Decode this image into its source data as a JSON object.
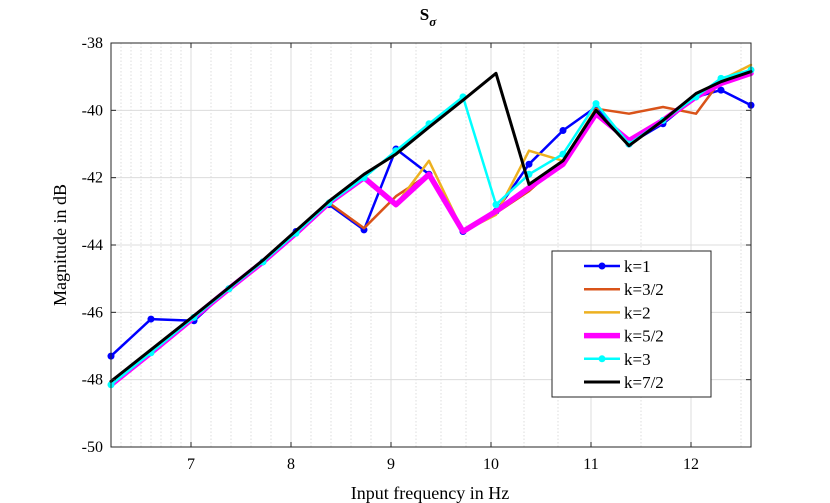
{
  "chart_data": {
    "type": "line",
    "title": "S",
    "title_subscript": "σ",
    "xlabel": "Input frequency in Hz",
    "ylabel": "Magnitude in dB",
    "xlim": [
      6.2,
      12.6
    ],
    "ylim": [
      -50,
      -38
    ],
    "xticks": [
      7,
      8,
      9,
      10,
      11,
      12
    ],
    "yticks": [
      -50,
      -48,
      -46,
      -44,
      -42,
      -40,
      -38
    ],
    "xtick_labels": [
      "7",
      "8",
      "9",
      "10",
      "11",
      "12"
    ],
    "ytick_labels": [
      "-50",
      "-48",
      "-46",
      "-44",
      "-42",
      "-40",
      "-38"
    ],
    "x_minor_ticks": [
      6.3,
      6.4,
      6.5,
      6.6,
      6.7,
      6.8,
      6.9,
      7.2,
      7.4,
      7.6,
      7.8,
      8.2,
      8.4,
      8.6,
      8.8,
      9.25,
      9.5,
      9.75,
      10.33,
      10.67,
      11.5,
      12.5
    ],
    "grid": true,
    "legend_position": "bottom-right",
    "series": [
      {
        "name": "k=1",
        "color": "#0000FF",
        "marker": true,
        "x": [
          6.2,
          6.6,
          7.03,
          7.38,
          7.72,
          8.05,
          8.38,
          8.73,
          9.05,
          9.38,
          9.72,
          10.05,
          10.38,
          10.72,
          11.05,
          11.38,
          11.72,
          12.05,
          12.3,
          12.6
        ],
        "y": [
          -47.3,
          -46.2,
          -46.25,
          -45.3,
          -44.5,
          -43.6,
          -42.8,
          -43.55,
          -41.15,
          -41.9,
          -43.6,
          -43.0,
          -41.6,
          -40.6,
          -39.9,
          -41.0,
          -40.4,
          -39.6,
          -39.4,
          -39.85
        ]
      },
      {
        "name": "k=3/2",
        "color": "#D95319",
        "marker": false,
        "x": [
          6.2,
          6.6,
          7.03,
          7.38,
          7.72,
          8.05,
          8.38,
          8.73,
          9.05,
          9.38,
          9.72,
          10.05,
          10.38,
          10.72,
          11.05,
          11.38,
          11.72,
          12.05,
          12.3,
          12.6
        ],
        "y": [
          -48.1,
          -47.2,
          -46.15,
          -45.3,
          -44.5,
          -43.65,
          -42.75,
          -43.5,
          -42.55,
          -41.9,
          -43.6,
          -43.05,
          -42.4,
          -41.5,
          -39.95,
          -40.1,
          -39.9,
          -40.1,
          -39.1,
          -38.9
        ]
      },
      {
        "name": "k=2",
        "color": "#EDB120",
        "marker": false,
        "x": [
          6.2,
          6.6,
          7.03,
          7.38,
          7.72,
          8.05,
          8.38,
          8.73,
          9.05,
          9.38,
          9.72,
          10.05,
          10.38,
          10.72,
          11.05,
          11.38,
          11.72,
          12.05,
          12.3,
          12.6
        ],
        "y": [
          -48.1,
          -47.2,
          -46.15,
          -45.3,
          -44.5,
          -43.65,
          -42.75,
          -42.0,
          -42.8,
          -41.5,
          -43.6,
          -43.1,
          -41.2,
          -41.5,
          -40.1,
          -40.9,
          -40.3,
          -39.6,
          -39.1,
          -38.65
        ]
      },
      {
        "name": "k=5/2",
        "color": "#FF00FF",
        "marker": false,
        "x": [
          6.2,
          6.6,
          7.03,
          7.38,
          7.72,
          8.05,
          8.38,
          8.73,
          9.05,
          9.38,
          9.72,
          10.05,
          10.38,
          10.72,
          11.05,
          11.38,
          11.72,
          12.05,
          12.3,
          12.6
        ],
        "y": [
          -48.15,
          -47.2,
          -46.15,
          -45.3,
          -44.5,
          -43.65,
          -42.75,
          -42.0,
          -42.8,
          -41.9,
          -43.6,
          -43.0,
          -42.3,
          -41.6,
          -40.1,
          -40.9,
          -40.3,
          -39.6,
          -39.2,
          -38.9
        ]
      },
      {
        "name": "k=3",
        "color": "#00FFFF",
        "marker": true,
        "x": [
          6.2,
          6.6,
          7.03,
          7.38,
          7.72,
          8.05,
          8.38,
          8.73,
          9.05,
          9.38,
          9.72,
          10.05,
          10.38,
          10.72,
          11.05,
          11.38,
          11.72,
          12.05,
          12.3,
          12.6
        ],
        "y": [
          -48.15,
          -47.2,
          -46.15,
          -45.3,
          -44.5,
          -43.65,
          -42.75,
          -42.0,
          -41.2,
          -40.4,
          -39.6,
          -42.8,
          -41.9,
          -41.3,
          -39.8,
          -41.0,
          -40.3,
          -39.6,
          -39.05,
          -38.8
        ]
      },
      {
        "name": "k=7/2",
        "color": "#000000",
        "marker": false,
        "x": [
          6.2,
          7.03,
          7.72,
          8.38,
          8.73,
          9.05,
          9.38,
          9.72,
          10.05,
          10.38,
          10.72,
          11.05,
          11.38,
          11.72,
          12.05,
          12.3,
          12.6
        ],
        "y": [
          -48.05,
          -46.1,
          -44.45,
          -42.7,
          -41.9,
          -41.3,
          -40.5,
          -39.7,
          -38.9,
          -42.2,
          -41.5,
          -40.0,
          -41.05,
          -40.3,
          -39.5,
          -39.15,
          -38.85
        ]
      }
    ]
  }
}
